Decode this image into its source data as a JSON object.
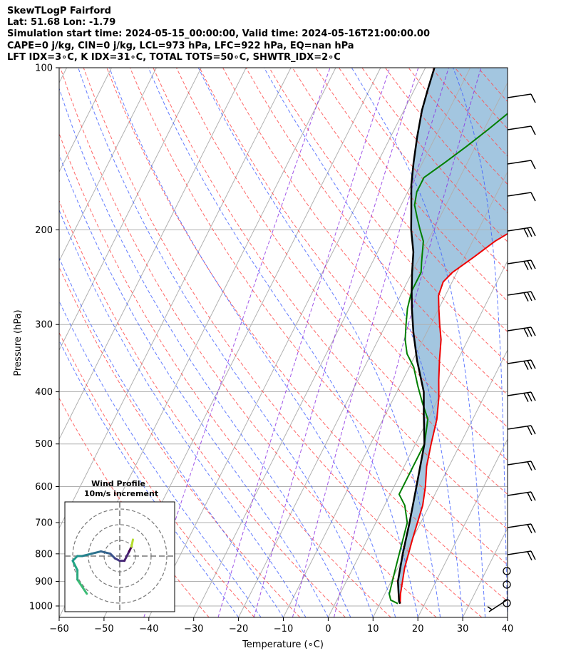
{
  "header": {
    "line1": "SkewTLogP Fairford",
    "line2": "Lat: 51.68   Lon: -1.79",
    "line3": "Simulation start time: 2024-05-15_00:00:00, Valid time: 2024-05-16T21:00:00.00",
    "line4": "CAPE=0 j/kg, CIN=0 j/kg, LCL=973 hPa, LFC=922 hPa, EQ=nan hPa",
    "line5": "LFT IDX=3∘C, K IDX=31∘C, TOTAL TOTS=50∘C, SHWTR_IDX=2∘C"
  },
  "chart_data": {
    "type": "line",
    "xlabel": "Temperature (∘C)",
    "ylabel": "Pressure (hPa)",
    "xlim": [
      -60,
      40
    ],
    "ylim": [
      1050,
      100
    ],
    "yscale": "log",
    "x_ticks": [
      -60,
      -50,
      -40,
      -30,
      -20,
      -10,
      0,
      10,
      20,
      30,
      40
    ],
    "x_tick_labels": [
      "−60",
      "−50",
      "−40",
      "−30",
      "−20",
      "−10",
      "0",
      "10",
      "20",
      "30",
      "40"
    ],
    "y_ticks": [
      1000,
      900,
      800,
      700,
      600,
      500,
      400,
      300,
      200,
      100
    ],
    "y_tick_labels": [
      "1000",
      "900",
      "800",
      "700",
      "600",
      "500",
      "400",
      "300",
      "200",
      "100"
    ],
    "grid": true,
    "series": [
      {
        "color": "#ee0000",
        "points": [
          [
            14.5,
            990
          ],
          [
            13.5,
            950
          ],
          [
            11.5,
            850
          ],
          [
            10,
            750
          ],
          [
            8.5,
            650
          ],
          [
            7,
            600
          ],
          [
            5,
            550
          ],
          [
            3.5,
            500
          ],
          [
            2,
            450
          ],
          [
            0,
            410
          ],
          [
            -2,
            380
          ],
          [
            -4,
            350
          ],
          [
            -6,
            320
          ],
          [
            -8,
            300
          ],
          [
            -10,
            280
          ],
          [
            -11.5,
            265
          ],
          [
            -12,
            250
          ],
          [
            -11,
            240
          ],
          [
            -8,
            225
          ],
          [
            -5,
            210
          ],
          [
            -2,
            200
          ],
          [
            1,
            190
          ],
          [
            3,
            180
          ],
          [
            5,
            170
          ],
          [
            6.5,
            160
          ],
          [
            8,
            150
          ],
          [
            9,
            140
          ],
          [
            11,
            130
          ],
          [
            13,
            120
          ],
          [
            15,
            110
          ],
          [
            17,
            100
          ]
        ]
      },
      {
        "color": "#007f00",
        "points": [
          [
            14,
            990
          ],
          [
            12,
            975
          ],
          [
            11,
            950
          ],
          [
            9.5,
            850
          ],
          [
            7,
            700
          ],
          [
            4.5,
            650
          ],
          [
            2,
            620
          ],
          [
            2,
            580
          ],
          [
            2,
            500
          ],
          [
            0,
            450
          ],
          [
            -3,
            420
          ],
          [
            -6,
            390
          ],
          [
            -9,
            360
          ],
          [
            -12,
            340
          ],
          [
            -14,
            320
          ],
          [
            -15.5,
            300
          ],
          [
            -17,
            280
          ],
          [
            -18,
            260
          ],
          [
            -18,
            240
          ],
          [
            -19,
            230
          ],
          [
            -21,
            210
          ],
          [
            -23,
            200
          ],
          [
            -25,
            190
          ],
          [
            -27,
            180
          ],
          [
            -28,
            170
          ],
          [
            -28,
            160
          ],
          [
            -25,
            150
          ],
          [
            -22,
            140
          ],
          [
            -19,
            130
          ],
          [
            -16,
            120
          ],
          [
            -13,
            110
          ],
          [
            -11,
            100
          ]
        ]
      },
      {
        "color": "#000000",
        "points": [
          [
            14.5,
            990
          ],
          [
            14,
            980
          ],
          [
            11.5,
            900
          ],
          [
            9.5,
            800
          ],
          [
            7.5,
            700
          ],
          [
            5,
            600
          ],
          [
            2,
            500
          ],
          [
            -1.5,
            440
          ],
          [
            -4,
            400
          ],
          [
            -9,
            350
          ],
          [
            -13,
            310
          ],
          [
            -16,
            280
          ],
          [
            -18,
            260
          ],
          [
            -20,
            240
          ],
          [
            -22,
            220
          ],
          [
            -25,
            200
          ],
          [
            -27,
            185
          ],
          [
            -30,
            165
          ],
          [
            -32,
            150
          ],
          [
            -34,
            135
          ],
          [
            -36,
            120
          ],
          [
            -37,
            110
          ],
          [
            -38,
            100
          ]
        ]
      }
    ],
    "hodograph": {
      "title": "Wind Profile",
      "subtitle": "10m/s increment",
      "type": "line",
      "points_u_v": [
        [
          -7,
          -8
        ],
        [
          -9,
          -5
        ],
        [
          -9,
          -3
        ],
        [
          -10,
          -1
        ],
        [
          -9,
          0
        ],
        [
          -8,
          0
        ],
        [
          -6,
          0.5
        ],
        [
          -4,
          1
        ],
        [
          -2,
          0.5
        ],
        [
          -1,
          -0.5
        ],
        [
          0,
          -1
        ],
        [
          1,
          -1
        ],
        [
          1.5,
          0
        ],
        [
          2,
          1
        ],
        [
          2.5,
          2
        ],
        [
          2.8,
          3.5
        ]
      ]
    },
    "wind_barbs": [
      {
        "p": 990,
        "speed_kt": 5,
        "dir": 220
      },
      {
        "p": 100,
        "speed_kt": 25,
        "dir": 280
      },
      {
        "p": 200,
        "speed_kt": 25,
        "dir": 290
      }
    ]
  }
}
